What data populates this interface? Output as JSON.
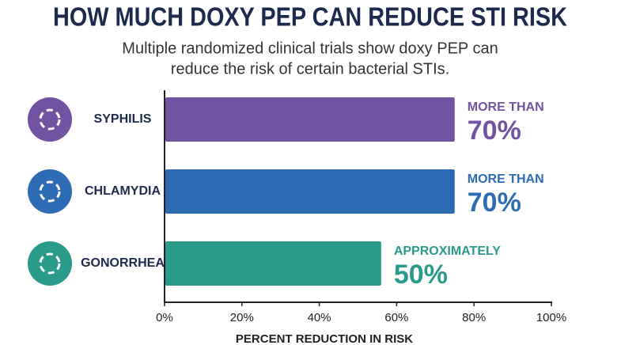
{
  "chart_data": {
    "type": "hbar",
    "title": "HOW MUCH DOXY PEP CAN REDUCE STI RISK",
    "subtitle": [
      "Multiple randomized clinical trials show doxy PEP can",
      "reduce the risk of certain bacterial STIs."
    ],
    "categories": [
      "SYPHILIS",
      "CHLAMYDIA",
      "GONORRHEA"
    ],
    "values": [
      75,
      75,
      56
    ],
    "colors": [
      "#7153a1",
      "#2d6cb4",
      "#2a9a8b"
    ],
    "annotations": [
      [
        "MORE THAN",
        "70%"
      ],
      [
        "MORE THAN",
        "70%"
      ],
      [
        "APPROXIMATELY",
        "50%"
      ]
    ],
    "xlim": [
      0,
      100
    ],
    "xticks": [
      {
        "value": 0,
        "label": "0%"
      },
      {
        "value": 20,
        "label": "20%"
      },
      {
        "value": 40,
        "label": "40%"
      },
      {
        "value": 60,
        "label": "60%"
      },
      {
        "value": 80,
        "label": "80%"
      },
      {
        "value": 100,
        "label": "100%"
      }
    ],
    "xlabel": "PERCENT REDUCTION IN RISK"
  }
}
